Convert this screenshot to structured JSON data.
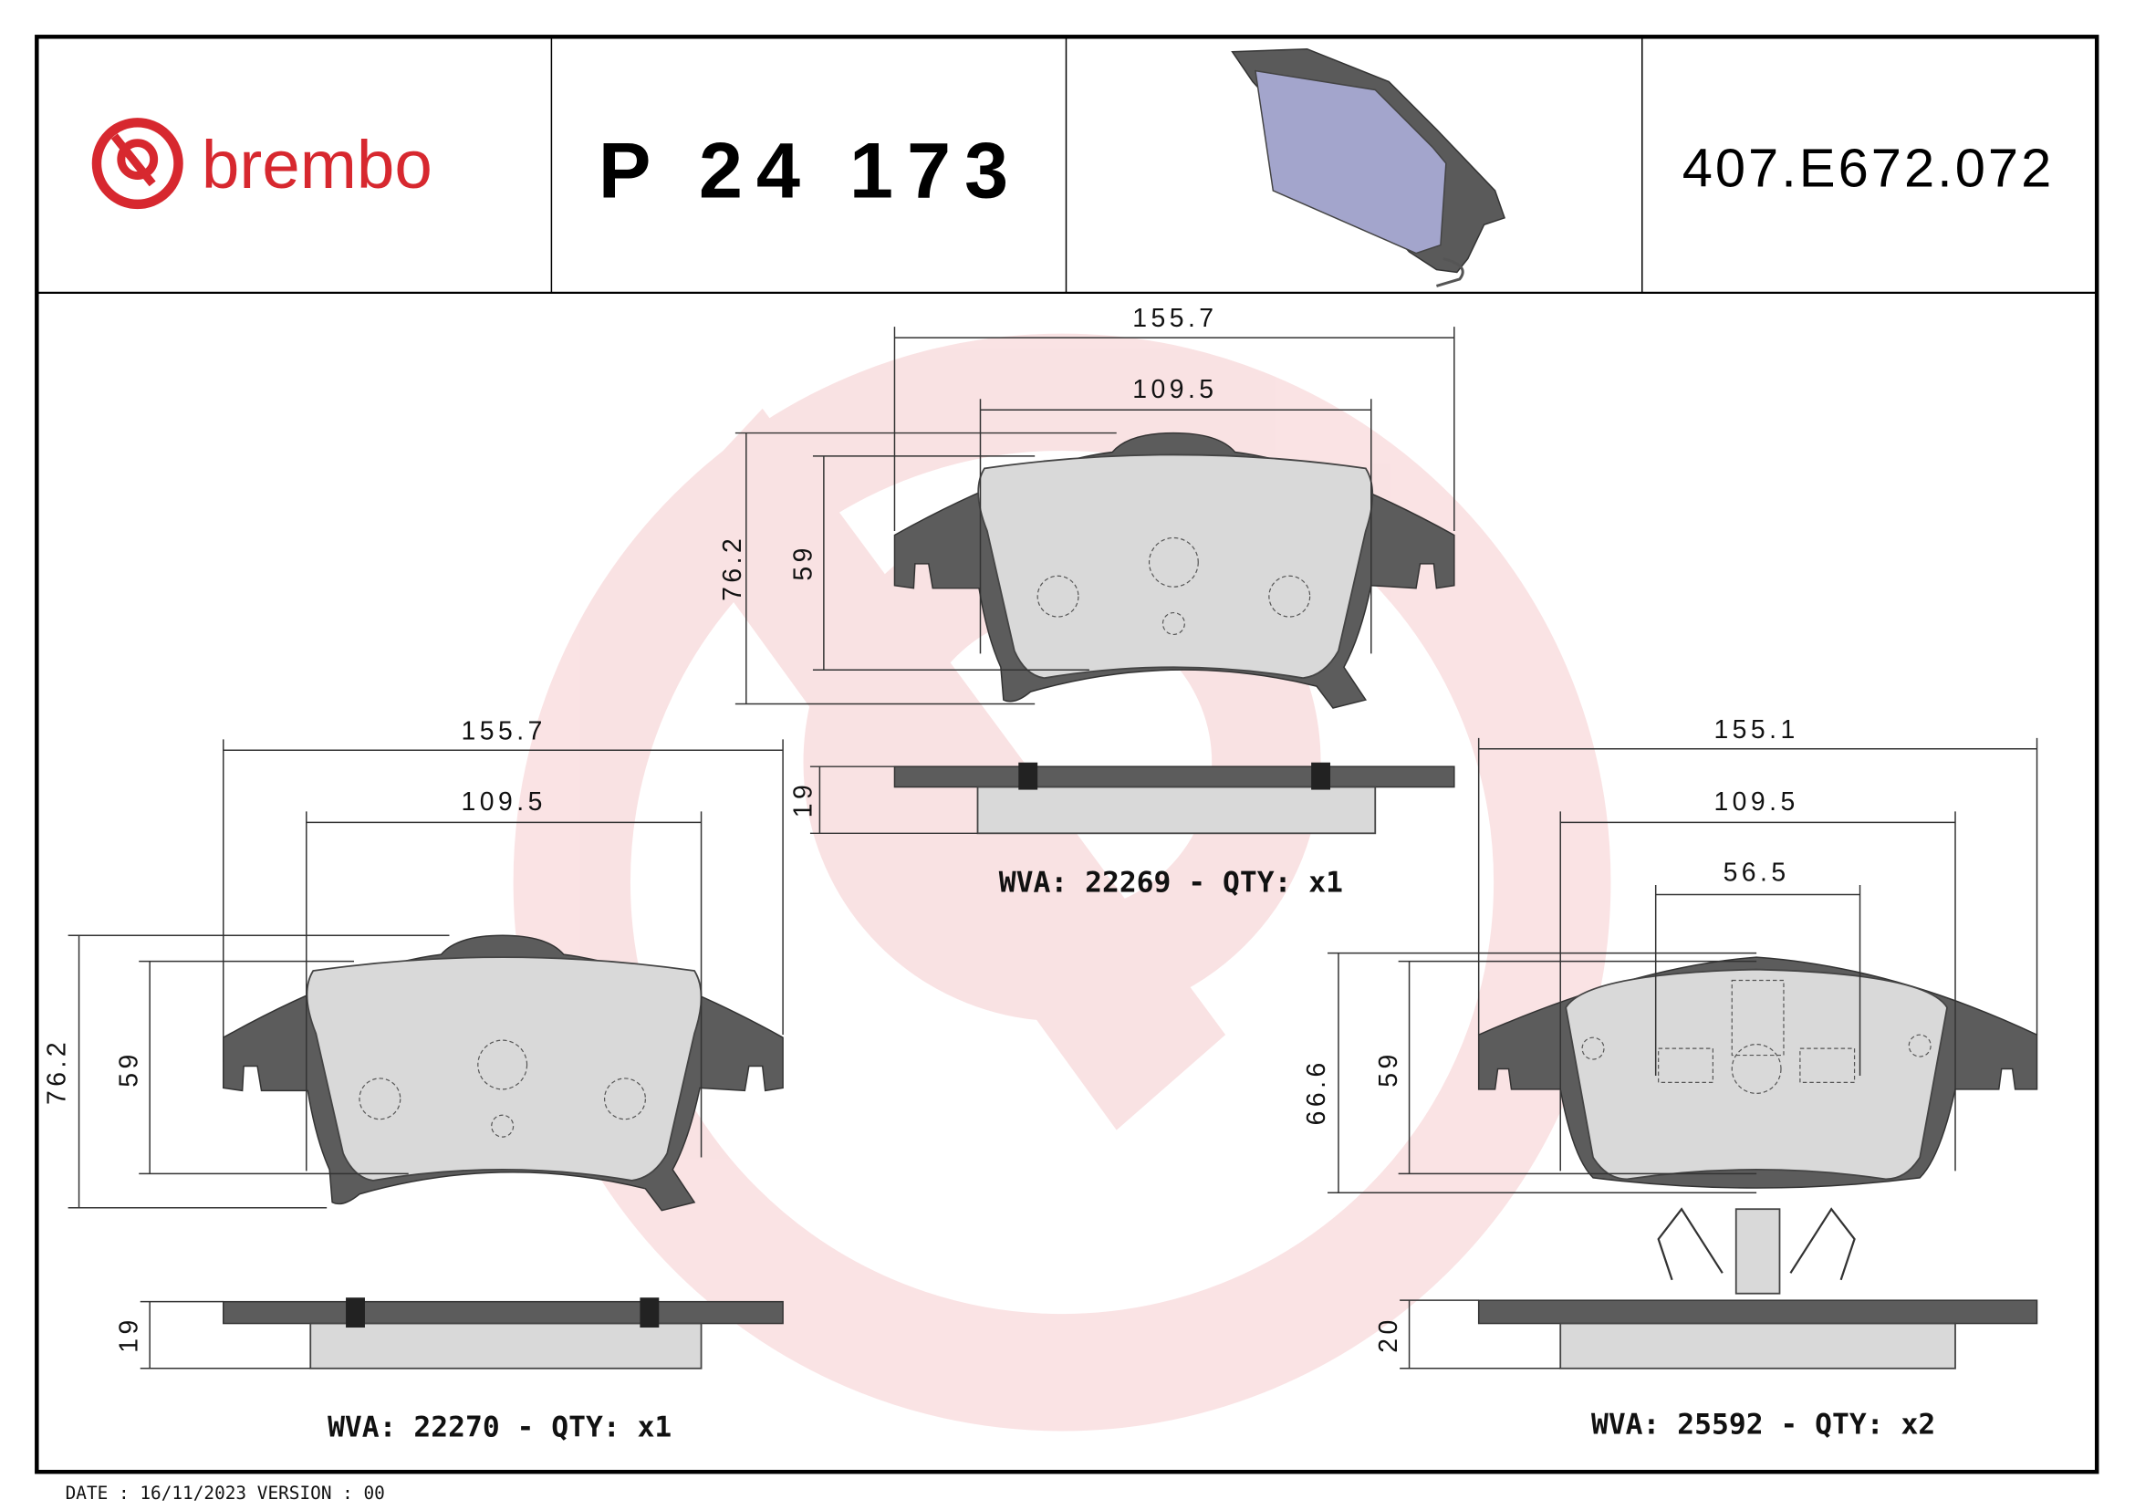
{
  "header": {
    "brand": "brembo",
    "part_number": "P 24 173",
    "reference_code": "407.E672.072",
    "brand_color": "#d7282f"
  },
  "pads": [
    {
      "width_total": "155.7",
      "width_friction": "109.5",
      "height_total": "76.2",
      "height_friction": "59",
      "thickness": "19",
      "label": "WVA: 22269 - QTY: x1"
    },
    {
      "width_total": "155.7",
      "width_friction": "109.5",
      "height_total": "76.2",
      "height_friction": "59",
      "thickness": "19",
      "label": "WVA: 22270 - QTY: x1"
    },
    {
      "width_total": "155.1",
      "width_friction": "109.5",
      "width_sensor": "56.5",
      "height_total": "66.6",
      "height_friction": "59",
      "thickness": "20",
      "label": "WVA: 25592 - QTY: x2"
    }
  ],
  "footer": {
    "text": "DATE : 16/11/2023 VERSION : 00"
  }
}
